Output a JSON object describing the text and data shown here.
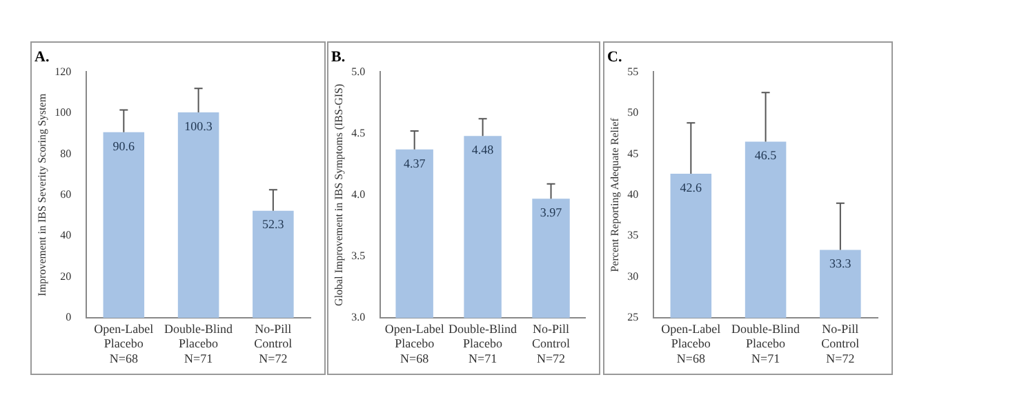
{
  "chart_data": [
    {
      "type": "bar",
      "title": "A.",
      "ylabel": "Improvement in IBS Severity Scoring System",
      "categories": [
        "Open-Label\nPlacebo\nN=68",
        "Double-Blind\nPlacebo\nN=71",
        "No-Pill\nControl\nN=72"
      ],
      "values": [
        90.6,
        100.3,
        52.3
      ],
      "errors": [
        [
          90.6,
          101.5
        ],
        [
          100.3,
          112
        ],
        [
          52.3,
          62.5
        ]
      ],
      "color": "#a7c3e5",
      "ylim": [
        0,
        120
      ],
      "yticks": [
        0,
        20,
        40,
        60,
        80,
        100,
        120
      ],
      "grid": false,
      "legend": false,
      "data_labels": true
    },
    {
      "type": "bar",
      "title": "B.",
      "ylabel": "Global Improvement in IBS Symptoms (IBS-GIS)",
      "categories": [
        "Open-Label\nPlacebo\nN=68",
        "Double-Blind\nPlacebo\nN=71",
        "No-Pill\nControl\nN=72"
      ],
      "values": [
        4.37,
        4.48,
        3.97
      ],
      "errors": [
        [
          4.37,
          4.52
        ],
        [
          4.48,
          4.62
        ],
        [
          3.97,
          4.09
        ]
      ],
      "color": "#a7c3e5",
      "ylim": [
        3,
        5
      ],
      "yticks": [
        {
          "value": 3,
          "label": "3.0"
        },
        {
          "value": 3.5,
          "label": "3.5"
        },
        {
          "value": 4,
          "label": "4.0"
        },
        {
          "value": 4.5,
          "label": "4.5"
        },
        {
          "value": 5,
          "label": "5.0"
        }
      ],
      "grid": false,
      "legend": false,
      "data_labels": true
    },
    {
      "type": "bar",
      "title": "C.",
      "ylabel": "Percent Reporting Adequate Relief",
      "categories": [
        "Open-Label\nPlacebo\nN=68",
        "Double-Blind\nPlacebo\nN=71",
        "No-Pill\nControl\nN=72"
      ],
      "values": [
        42.6,
        46.5,
        33.3
      ],
      "errors": [
        [
          42.6,
          48.8
        ],
        [
          46.5,
          52.5
        ],
        [
          33.3,
          39
        ]
      ],
      "color": "#a7c3e5",
      "ylim": [
        25,
        55
      ],
      "yticks": [
        25,
        30,
        35,
        40,
        45,
        50,
        55
      ],
      "grid": false,
      "legend": false,
      "data_labels": true
    }
  ]
}
